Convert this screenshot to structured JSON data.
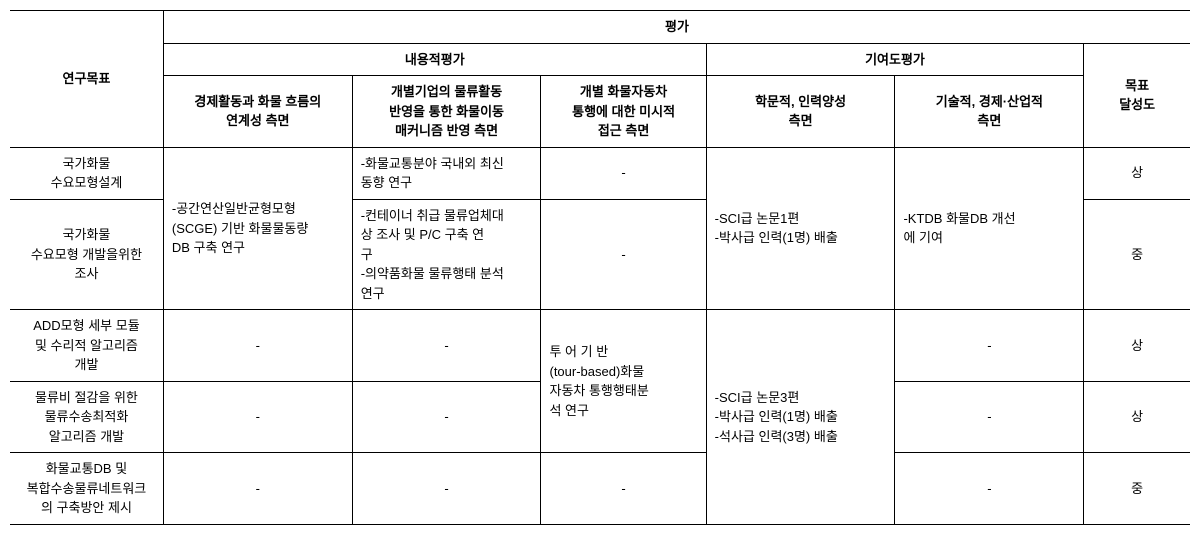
{
  "header": {
    "row_label": "연구목표",
    "eval_group": "평가",
    "content_eval": "내용적평가",
    "contrib_eval": "기여도평가",
    "goal_achieve": "목표\n달성도",
    "col1": "경제활동과 화물 흐름의\n연계성 측면",
    "col2": "개별기업의 물류활동\n반영을 통한 화물이동\n매커니즘 반영 측면",
    "col3": "개별 화물자동차\n통행에 대한 미시적\n접근 측면",
    "col4": "학문적, 인력양성\n측면",
    "col5": "기술적, 경제·산업적\n측면"
  },
  "rows": {
    "r1_label": "국가화물\n수요모형설계",
    "r2_label": "국가화물\n수요모형 개발을위한\n조사",
    "r3_label": "ADD모형 세부 모듈\n및 수리적 알고리즘\n개발",
    "r4_label": "물류비 절감을 위한\n물류수송최적화\n알고리즘 개발",
    "r5_label": "화물교통DB 및\n복합수송물류네트워크\n의 구축방안 제시"
  },
  "cells": {
    "r1_2_c1": "-공간연산일반균형모형\n(SCGE) 기반 화물물동량\nDB 구축 연구",
    "r1_c2": "-화물교통분야 국내외 최신\n동향 연구",
    "r2_c2": "-컨테이너 취급 물류업체대\n상 조사 및 P/C 구축 연\n구\n-의약품화물 물류행태 분석\n연구",
    "r1_c3": "-",
    "r2_c3": "-",
    "r3_4_c3": "투 어 기 반\n(tour-based)화물\n자동차 통행행태분\n석 연구",
    "r5_c3": "-",
    "r1_2_c4": "-SCI급 논문1편\n-박사급 인력(1명) 배출",
    "r1_2_c5": "-KTDB 화물DB 개선\n에 기여",
    "r3_c1": "-",
    "r3_c2": "-",
    "r3_c5": "-",
    "r4_c1": "-",
    "r4_c2": "-",
    "r4_c5": "-",
    "r3_5_c4": "-SCI급 논문3편\n-박사급 인력(1명) 배출\n-석사급 인력(3명) 배출",
    "r5_c1": "-",
    "r5_c2": "-",
    "r5_c5": "-",
    "r1_goal": "상",
    "r2_goal": "중",
    "r3_goal": "상",
    "r4_goal": "상",
    "r5_goal": "중"
  },
  "dash": "-"
}
